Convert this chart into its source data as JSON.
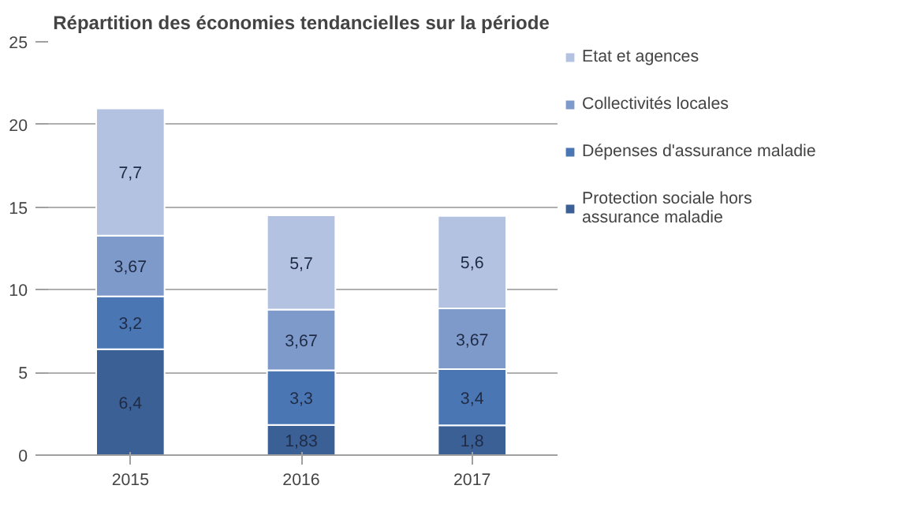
{
  "chart_data": {
    "type": "bar",
    "stacked": true,
    "title": "Répartition des économies tendancielles sur la période",
    "categories": [
      "2015",
      "2016",
      "2017"
    ],
    "series": [
      {
        "name": "Protection sociale hors assurance maladie",
        "color": "#3b6096",
        "values": [
          6.4,
          1.83,
          1.8
        ],
        "value_labels": [
          "6,4",
          "1,83",
          "1,8"
        ]
      },
      {
        "name": "Dépenses d'assurance maladie",
        "color": "#4a77b4",
        "values": [
          3.2,
          3.3,
          3.4
        ],
        "value_labels": [
          "3,2",
          "3,3",
          "3,4"
        ]
      },
      {
        "name": "Collectivités locales",
        "color": "#7d9acb",
        "values": [
          3.67,
          3.67,
          3.67
        ],
        "value_labels": [
          "3,67",
          "3,67",
          "3,67"
        ]
      },
      {
        "name": "Etat et agences",
        "color": "#b3c2e0",
        "values": [
          7.7,
          5.7,
          5.6
        ],
        "value_labels": [
          "7,7",
          "5,7",
          "5,6"
        ]
      }
    ],
    "ylim": [
      0,
      25
    ],
    "yticks": [
      0,
      5,
      10,
      15,
      20,
      25
    ],
    "grid": "y",
    "legend": "right"
  }
}
